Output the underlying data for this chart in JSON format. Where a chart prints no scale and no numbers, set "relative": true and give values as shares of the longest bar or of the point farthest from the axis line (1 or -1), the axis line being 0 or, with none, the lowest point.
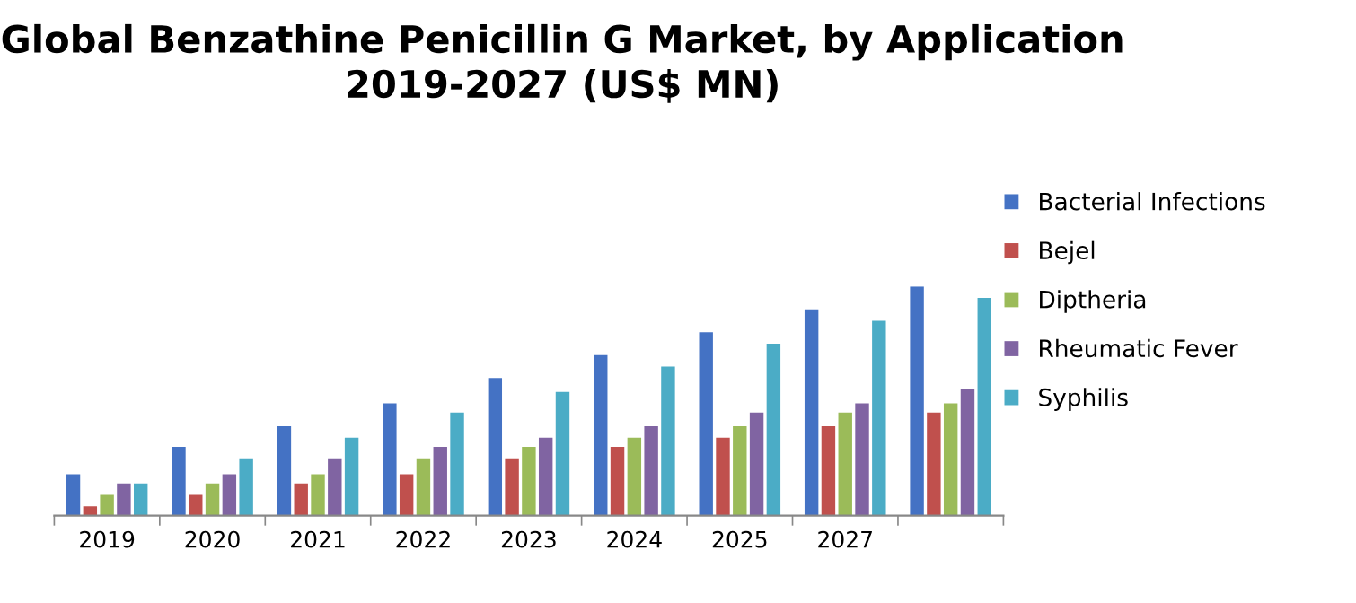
{
  "chart_data": {
    "type": "bar",
    "title": "Global Benzathine Penicillin G Market, by Application\n2019-2027 (US$ MN)",
    "relative": true,
    "legend": "right",
    "categories": [
      "2019",
      "2020",
      "2021",
      "2022",
      "2023",
      "2024",
      "2025",
      "2027",
      null
    ],
    "series": [
      {
        "name": "Bacterial Infections",
        "color": "#4472c4",
        "values": [
          0.18,
          0.3,
          0.39,
          0.49,
          0.6,
          0.7,
          0.8,
          0.9,
          1
        ]
      },
      {
        "name": "Bejel",
        "color": "#c0504d",
        "values": [
          0.04,
          0.09,
          0.14,
          0.18,
          0.25,
          0.3,
          0.34,
          0.39,
          0.45
        ]
      },
      {
        "name": "Diptheria",
        "color": "#9bbb59",
        "values": [
          0.09,
          0.14,
          0.18,
          0.25,
          0.3,
          0.34,
          0.39,
          0.45,
          0.49
        ]
      },
      {
        "name": "Rheumatic Fever",
        "color": "#8064a2",
        "values": [
          0.14,
          0.18,
          0.25,
          0.3,
          0.34,
          0.39,
          0.45,
          0.49,
          0.55
        ]
      },
      {
        "name": "Syphilis",
        "color": "#4bacc6",
        "values": [
          0.14,
          0.25,
          0.34,
          0.45,
          0.54,
          0.65,
          0.75,
          0.85,
          0.95
        ]
      }
    ]
  }
}
